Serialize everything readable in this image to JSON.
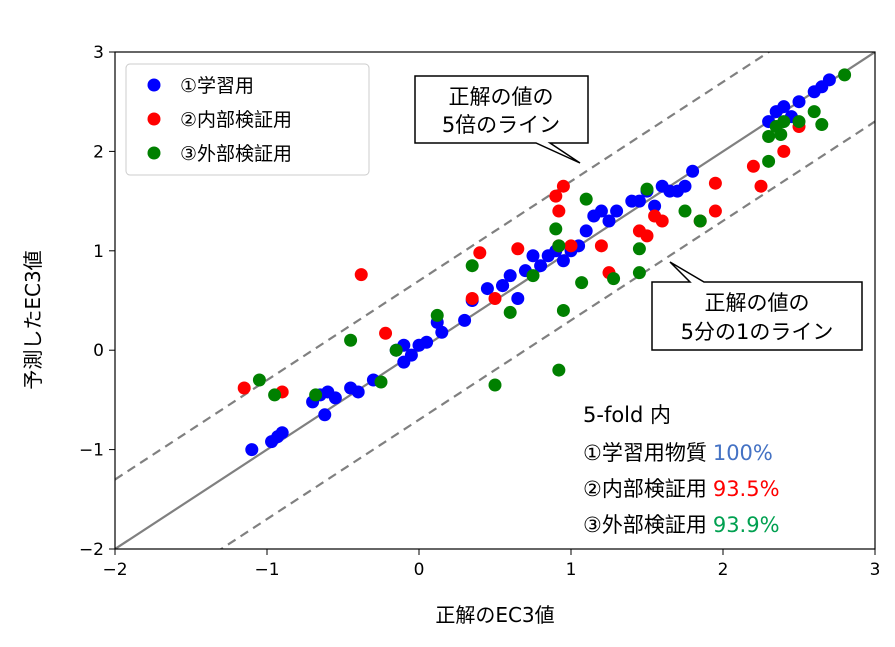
{
  "chart_data": {
    "type": "scatter",
    "xlabel": "正解のEC3値",
    "ylabel": "予測したEC3値",
    "xlim": [
      -2,
      3
    ],
    "ylim": [
      -2,
      3
    ],
    "xticks": [
      "−2",
      "−1",
      "0",
      "1",
      "2",
      "3"
    ],
    "yticks": [
      "−2",
      "−1",
      "0",
      "1",
      "2",
      "3"
    ],
    "grid": false,
    "legend_position": "top-left",
    "series": [
      {
        "name": "①学習用",
        "color": "#0000ff",
        "points": [
          [
            -1.1,
            -1.0
          ],
          [
            -0.97,
            -0.92
          ],
          [
            -0.93,
            -0.87
          ],
          [
            -0.9,
            -0.83
          ],
          [
            -0.7,
            -0.52
          ],
          [
            -0.65,
            -0.45
          ],
          [
            -0.6,
            -0.42
          ],
          [
            -0.55,
            -0.48
          ],
          [
            -0.45,
            -0.38
          ],
          [
            -0.62,
            -0.65
          ],
          [
            -0.3,
            -0.3
          ],
          [
            -0.15,
            0.0
          ],
          [
            -0.1,
            -0.12
          ],
          [
            -0.05,
            -0.05
          ],
          [
            -0.1,
            0.05
          ],
          [
            0.0,
            0.05
          ],
          [
            0.05,
            0.08
          ],
          [
            0.15,
            0.18
          ],
          [
            0.3,
            0.3
          ],
          [
            0.35,
            0.5
          ],
          [
            0.45,
            0.62
          ],
          [
            0.55,
            0.65
          ],
          [
            0.6,
            0.75
          ],
          [
            0.7,
            0.8
          ],
          [
            0.75,
            0.95
          ],
          [
            0.8,
            0.85
          ],
          [
            0.85,
            0.95
          ],
          [
            0.9,
            1.0
          ],
          [
            0.95,
            0.9
          ],
          [
            1.0,
            1.0
          ],
          [
            1.05,
            1.05
          ],
          [
            1.1,
            1.2
          ],
          [
            1.15,
            1.35
          ],
          [
            1.2,
            1.4
          ],
          [
            1.25,
            1.3
          ],
          [
            1.3,
            1.4
          ],
          [
            1.4,
            1.5
          ],
          [
            1.45,
            1.5
          ],
          [
            1.5,
            1.6
          ],
          [
            1.55,
            1.45
          ],
          [
            1.6,
            1.65
          ],
          [
            1.65,
            1.6
          ],
          [
            1.7,
            1.6
          ],
          [
            1.75,
            1.65
          ],
          [
            1.8,
            1.8
          ],
          [
            2.3,
            2.3
          ],
          [
            2.35,
            2.4
          ],
          [
            2.4,
            2.45
          ],
          [
            2.45,
            2.35
          ],
          [
            2.5,
            2.5
          ],
          [
            2.6,
            2.6
          ],
          [
            2.65,
            2.65
          ],
          [
            2.7,
            2.72
          ],
          [
            -0.4,
            -0.42
          ],
          [
            0.12,
            0.28
          ],
          [
            0.65,
            0.52
          ],
          [
            0.55,
            0.65
          ]
        ]
      },
      {
        "name": "②内部検証用",
        "color": "#ff0000",
        "points": [
          [
            -1.15,
            -0.38
          ],
          [
            -0.9,
            -0.42
          ],
          [
            -0.38,
            0.76
          ],
          [
            -0.22,
            0.17
          ],
          [
            0.35,
            0.52
          ],
          [
            0.5,
            0.52
          ],
          [
            0.4,
            0.98
          ],
          [
            0.65,
            1.02
          ],
          [
            0.9,
            1.55
          ],
          [
            0.95,
            1.65
          ],
          [
            0.92,
            1.4
          ],
          [
            1.0,
            1.05
          ],
          [
            0.92,
            1.05
          ],
          [
            1.2,
            1.05
          ],
          [
            1.25,
            0.78
          ],
          [
            1.45,
            1.2
          ],
          [
            1.5,
            1.15
          ],
          [
            1.55,
            1.35
          ],
          [
            1.6,
            1.3
          ],
          [
            1.95,
            1.68
          ],
          [
            2.2,
            1.85
          ],
          [
            2.25,
            1.65
          ],
          [
            2.5,
            2.25
          ],
          [
            2.4,
            2.0
          ],
          [
            1.85,
            1.3
          ],
          [
            1.95,
            1.4
          ]
        ]
      },
      {
        "name": "③外部検証用",
        "color": "#008000",
        "points": [
          [
            -1.05,
            -0.3
          ],
          [
            -0.95,
            -0.45
          ],
          [
            -0.68,
            -0.45
          ],
          [
            -0.45,
            0.1
          ],
          [
            -0.25,
            -0.32
          ],
          [
            -0.15,
            0.0
          ],
          [
            0.12,
            0.35
          ],
          [
            0.35,
            0.85
          ],
          [
            0.5,
            -0.35
          ],
          [
            0.6,
            0.38
          ],
          [
            0.75,
            0.75
          ],
          [
            0.9,
            1.22
          ],
          [
            0.92,
            1.05
          ],
          [
            0.95,
            0.4
          ],
          [
            0.92,
            -0.2
          ],
          [
            1.1,
            1.52
          ],
          [
            1.07,
            0.68
          ],
          [
            1.28,
            0.72
          ],
          [
            1.45,
            0.78
          ],
          [
            1.45,
            1.02
          ],
          [
            1.5,
            1.62
          ],
          [
            1.75,
            1.4
          ],
          [
            1.85,
            1.3
          ],
          [
            2.3,
            1.9
          ],
          [
            2.3,
            2.15
          ],
          [
            2.35,
            2.25
          ],
          [
            2.4,
            2.3
          ],
          [
            2.5,
            2.3
          ],
          [
            2.6,
            2.4
          ],
          [
            2.65,
            2.27
          ],
          [
            2.8,
            2.77
          ],
          [
            2.38,
            2.17
          ]
        ]
      }
    ],
    "reference_lines": [
      {
        "style": "solid",
        "color": "#808080",
        "points": [
          [
            -2,
            -2
          ],
          [
            3,
            3
          ]
        ]
      },
      {
        "style": "dashed",
        "color": "#808080",
        "points": [
          [
            -2,
            -1.301
          ],
          [
            3,
            3.699
          ]
        ]
      },
      {
        "style": "dashed",
        "color": "#808080",
        "points": [
          [
            -2,
            -2.699
          ],
          [
            3,
            2.301
          ]
        ]
      }
    ]
  },
  "legend": {
    "items": [
      {
        "label": "①学習用",
        "color": "#0000ff"
      },
      {
        "label": "②内部検証用",
        "color": "#ff0000"
      },
      {
        "label": "③外部検証用",
        "color": "#008000"
      }
    ]
  },
  "callouts": {
    "upper": {
      "line1": "正解の値の",
      "line2": "5倍のライン"
    },
    "lower": {
      "line1": "正解の値の",
      "line2": "5分の1のライン"
    }
  },
  "note": {
    "title": "5-fold 内",
    "rows": [
      {
        "label": "①学習用物質",
        "value": "100%",
        "color": "#4472c4"
      },
      {
        "label": "②内部検証用",
        "value": "93.5%",
        "color": "#ff0000"
      },
      {
        "label": "③外部検証用",
        "value": "93.9%",
        "color": "#00a050"
      }
    ]
  }
}
